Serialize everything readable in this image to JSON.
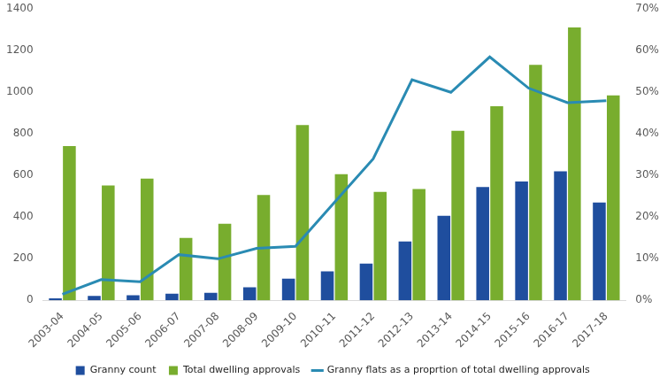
{
  "chart_data": {
    "type": "bar",
    "categories": [
      "2003-04",
      "2004-05",
      "2005-06",
      "2006-07",
      "2007-08",
      "2008-09",
      "2009-10",
      "2010-11",
      "2011-12",
      "2012-13",
      "2013-14",
      "2014-15",
      "2015-16",
      "2016-17",
      "2017-18"
    ],
    "series": [
      {
        "name": "Granny count",
        "color": "#1f4e9e",
        "values": [
          10,
          22,
          25,
          32,
          37,
          63,
          105,
          140,
          177,
          283,
          407,
          545,
          572,
          620,
          470
        ]
      },
      {
        "name": "Total dwelling approvals",
        "color": "#78ad2e",
        "values": [
          742,
          552,
          585,
          300,
          368,
          507,
          843,
          607,
          522,
          535,
          815,
          933,
          1132,
          1312,
          985
        ]
      },
      {
        "name": "Granny flats as a proprtion of total dwelling approvals",
        "color": "#2a8bb3",
        "type": "line",
        "axis": "y2",
        "values": [
          1.5,
          5,
          4.5,
          11,
          10,
          12.5,
          13,
          23.5,
          34,
          53,
          50,
          58.5,
          51,
          47.5,
          48
        ]
      }
    ],
    "ylim": [
      0,
      1400
    ],
    "yticks": [
      0,
      200,
      400,
      600,
      800,
      1000,
      1200,
      1400
    ],
    "y2lim": [
      0,
      70
    ],
    "y2ticks": [
      {
        "value": 0,
        "label": "0%"
      },
      {
        "value": 10,
        "label": "10%"
      },
      {
        "value": 20,
        "label": "20%"
      },
      {
        "value": 30,
        "label": "30%"
      },
      {
        "value": 40,
        "label": "40%"
      },
      {
        "value": 50,
        "label": "50%"
      },
      {
        "value": 60,
        "label": "60%"
      },
      {
        "value": 70,
        "label": "70%"
      }
    ],
    "grid": false,
    "legend": "bottom"
  }
}
